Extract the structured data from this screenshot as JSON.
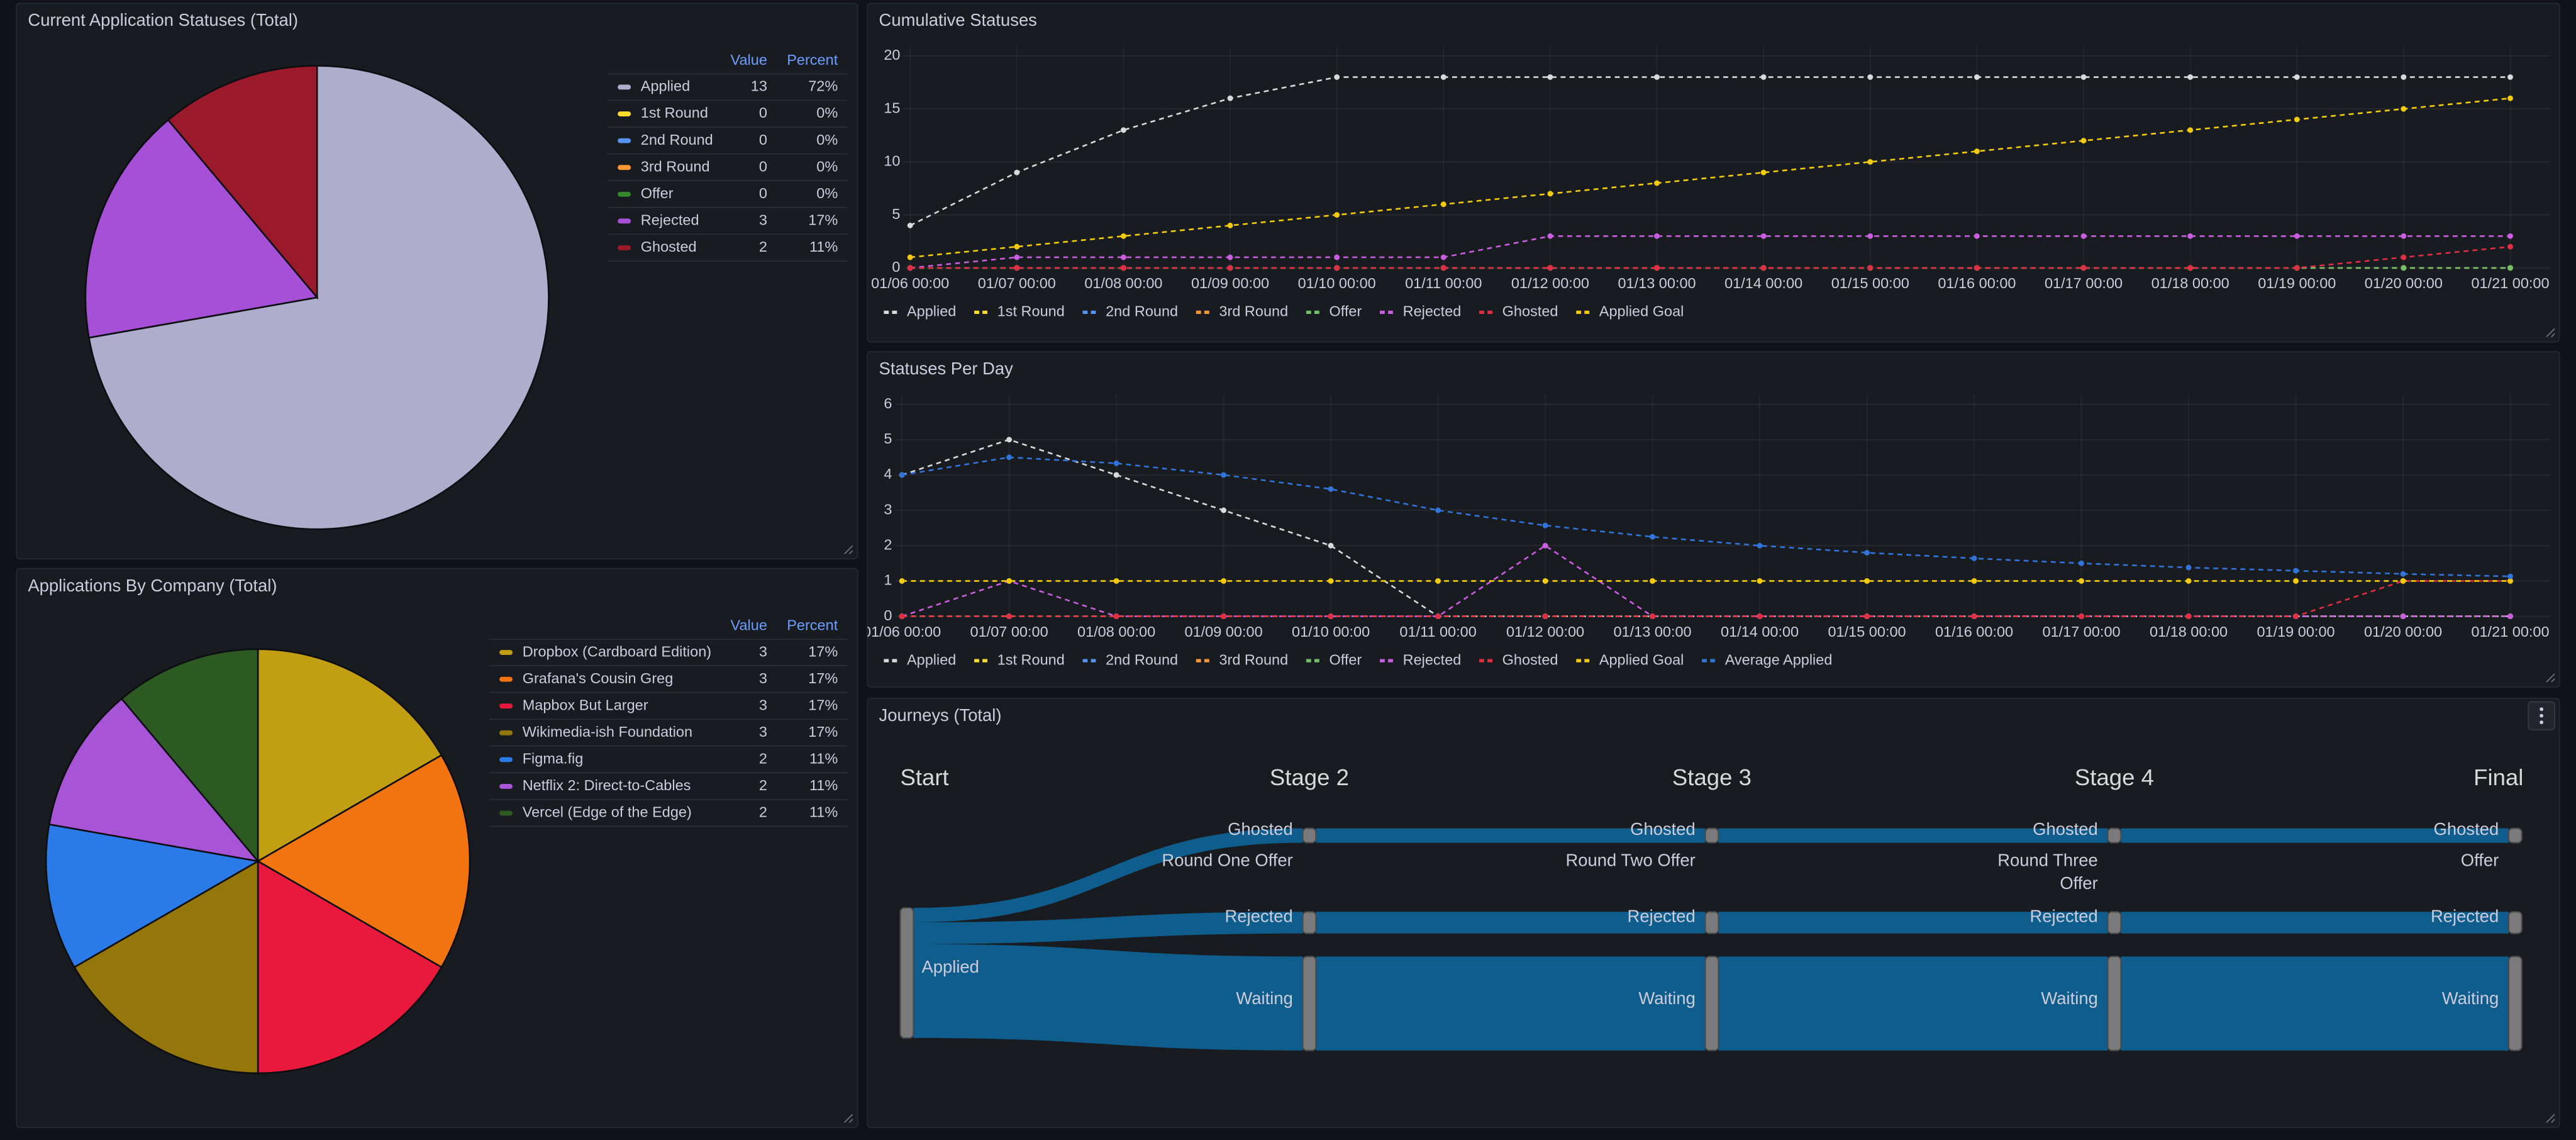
{
  "chart_data": [
    {
      "type": "pie",
      "title": "Current Application Statuses (Total)",
      "columns": [
        "Value",
        "Percent"
      ],
      "categories": [
        "Applied",
        "1st Round",
        "2nd Round",
        "3rd Round",
        "Offer",
        "Rejected",
        "Ghosted"
      ],
      "values": [
        13,
        0,
        0,
        0,
        0,
        3,
        2
      ],
      "percent_labels": [
        "72%",
        "0%",
        "0%",
        "0%",
        "0%",
        "17%",
        "11%"
      ],
      "colors": [
        "#aeadcc",
        "#fade2a",
        "#5794f2",
        "#ff9830",
        "#37872d",
        "#a550d6",
        "#9a1a2c"
      ]
    },
    {
      "type": "pie",
      "title": "Applications By Company (Total)",
      "columns": [
        "Value",
        "Percent"
      ],
      "categories": [
        "Dropbox (Cardboard Edition)",
        "Grafana's Cousin Greg",
        "Mapbox But Larger",
        "Wikimedia-ish Foundation",
        "Figma.fig",
        "Netflix 2: Direct-to-Cables",
        "Vercel (Edge of the Edge)"
      ],
      "values": [
        3,
        3,
        3,
        3,
        2,
        2,
        2
      ],
      "percent_labels": [
        "17%",
        "17%",
        "17%",
        "17%",
        "11%",
        "11%",
        "11%"
      ],
      "colors": [
        "#c29f12",
        "#f27410",
        "#e8193d",
        "#94760a",
        "#2a7ae8",
        "#a854d6",
        "#2c5a22"
      ]
    },
    {
      "type": "line",
      "title": "Cumulative Statuses",
      "categories": [
        "01/06 00:00",
        "01/07 00:00",
        "01/08 00:00",
        "01/09 00:00",
        "01/10 00:00",
        "01/11 00:00",
        "01/12 00:00",
        "01/13 00:00",
        "01/14 00:00",
        "01/15 00:00",
        "01/16 00:00",
        "01/17 00:00",
        "01/18 00:00",
        "01/19 00:00",
        "01/20 00:00",
        "01/21 00:00"
      ],
      "ylim": [
        0,
        20
      ],
      "yticks": [
        0,
        5,
        10,
        15,
        20
      ],
      "grid": true,
      "legend": "bottom",
      "series": [
        {
          "name": "Applied",
          "color": "#d8d9da",
          "values": [
            4,
            9,
            13,
            16,
            18,
            18,
            18,
            18,
            18,
            18,
            18,
            18,
            18,
            18,
            18,
            18
          ]
        },
        {
          "name": "1st Round",
          "color": "#fade2a",
          "values": [
            0,
            0,
            0,
            0,
            0,
            0,
            0,
            0,
            0,
            0,
            0,
            0,
            0,
            0,
            0,
            0
          ]
        },
        {
          "name": "2nd Round",
          "color": "#5794f2",
          "values": [
            0,
            0,
            0,
            0,
            0,
            0,
            0,
            0,
            0,
            0,
            0,
            0,
            0,
            0,
            0,
            0
          ]
        },
        {
          "name": "3rd Round",
          "color": "#ff9830",
          "values": [
            0,
            0,
            0,
            0,
            0,
            0,
            0,
            0,
            0,
            0,
            0,
            0,
            0,
            0,
            0,
            0
          ]
        },
        {
          "name": "Offer",
          "color": "#73bf69",
          "values": [
            0,
            0,
            0,
            0,
            0,
            0,
            0,
            0,
            0,
            0,
            0,
            0,
            0,
            0,
            0,
            0
          ]
        },
        {
          "name": "Rejected",
          "color": "#ca5ee0",
          "values": [
            0,
            1,
            1,
            1,
            1,
            1,
            3,
            3,
            3,
            3,
            3,
            3,
            3,
            3,
            3,
            3
          ]
        },
        {
          "name": "Ghosted",
          "color": "#e02f44",
          "values": [
            0,
            0,
            0,
            0,
            0,
            0,
            0,
            0,
            0,
            0,
            0,
            0,
            0,
            0,
            1,
            2
          ]
        },
        {
          "name": "Applied Goal",
          "color": "#f2cc0c",
          "values": [
            1,
            2,
            3,
            4,
            5,
            6,
            7,
            8,
            9,
            10,
            11,
            12,
            13,
            14,
            15,
            16
          ]
        }
      ]
    },
    {
      "type": "line",
      "title": "Statuses Per Day",
      "categories": [
        "01/06 00:00",
        "01/07 00:00",
        "01/08 00:00",
        "01/09 00:00",
        "01/10 00:00",
        "01/11 00:00",
        "01/12 00:00",
        "01/13 00:00",
        "01/14 00:00",
        "01/15 00:00",
        "01/16 00:00",
        "01/17 00:00",
        "01/18 00:00",
        "01/19 00:00",
        "01/20 00:00",
        "01/21 00:00"
      ],
      "ylim": [
        0,
        6
      ],
      "yticks": [
        0,
        1,
        2,
        3,
        4,
        5,
        6
      ],
      "grid": true,
      "legend": "bottom",
      "series": [
        {
          "name": "Applied",
          "color": "#d8d9da",
          "values": [
            4,
            5,
            4,
            3,
            2,
            0,
            0,
            0,
            0,
            0,
            0,
            0,
            0,
            0,
            0,
            0
          ]
        },
        {
          "name": "1st Round",
          "color": "#fade2a",
          "values": [
            0,
            0,
            0,
            0,
            0,
            0,
            0,
            0,
            0,
            0,
            0,
            0,
            0,
            0,
            0,
            0
          ]
        },
        {
          "name": "2nd Round",
          "color": "#5794f2",
          "values": [
            0,
            0,
            0,
            0,
            0,
            0,
            0,
            0,
            0,
            0,
            0,
            0,
            0,
            0,
            0,
            0
          ]
        },
        {
          "name": "3rd Round",
          "color": "#ff9830",
          "values": [
            0,
            0,
            0,
            0,
            0,
            0,
            0,
            0,
            0,
            0,
            0,
            0,
            0,
            0,
            0,
            0
          ]
        },
        {
          "name": "Offer",
          "color": "#73bf69",
          "values": [
            0,
            0,
            0,
            0,
            0,
            0,
            0,
            0,
            0,
            0,
            0,
            0,
            0,
            0,
            0,
            0
          ]
        },
        {
          "name": "Rejected",
          "color": "#ca5ee0",
          "values": [
            0,
            1,
            0,
            0,
            0,
            0,
            2,
            0,
            0,
            0,
            0,
            0,
            0,
            0,
            0,
            0
          ]
        },
        {
          "name": "Ghosted",
          "color": "#e02f44",
          "values": [
            0,
            0,
            0,
            0,
            0,
            0,
            0,
            0,
            0,
            0,
            0,
            0,
            0,
            0,
            1,
            1
          ]
        },
        {
          "name": "Applied Goal",
          "color": "#f2cc0c",
          "values": [
            1,
            1,
            1,
            1,
            1,
            1,
            1,
            1,
            1,
            1,
            1,
            1,
            1,
            1,
            1,
            1
          ]
        },
        {
          "name": "Average Applied",
          "color": "#3274d9",
          "values": [
            4,
            4.5,
            4.33,
            4,
            3.6,
            3,
            2.57,
            2.25,
            2,
            1.8,
            1.64,
            1.5,
            1.38,
            1.29,
            1.2,
            1.13
          ]
        }
      ]
    },
    {
      "type": "sankey",
      "title": "Journeys (Total)",
      "columns": [
        "Start",
        "Stage 2",
        "Stage 3",
        "Stage 4",
        "Final"
      ],
      "nodes": [
        {
          "label": "Applied",
          "column": 0
        },
        {
          "label": "Ghosted",
          "column": 1
        },
        {
          "label": "Round One Offer",
          "column": 1
        },
        {
          "label": "Rejected",
          "column": 1
        },
        {
          "label": "Waiting",
          "column": 1
        },
        {
          "label": "Ghosted",
          "column": 2
        },
        {
          "label": "Round Two Offer",
          "column": 2
        },
        {
          "label": "Rejected",
          "column": 2
        },
        {
          "label": "Waiting",
          "column": 2
        },
        {
          "label": "Ghosted",
          "column": 3
        },
        {
          "label": "Round Three Offer",
          "column": 3
        },
        {
          "label": "Rejected",
          "column": 3
        },
        {
          "label": "Waiting",
          "column": 3
        },
        {
          "label": "Ghosted",
          "column": 4
        },
        {
          "label": "Offer",
          "column": 4
        },
        {
          "label": "Rejected",
          "column": 4
        },
        {
          "label": "Waiting",
          "column": 4
        }
      ],
      "links": [
        {
          "source": 0,
          "target": 1,
          "value": 2
        },
        {
          "source": 0,
          "target": 3,
          "value": 3
        },
        {
          "source": 0,
          "target": 4,
          "value": 13
        },
        {
          "source": 1,
          "target": 5,
          "value": 2
        },
        {
          "source": 3,
          "target": 7,
          "value": 3
        },
        {
          "source": 4,
          "target": 8,
          "value": 13
        },
        {
          "source": 5,
          "target": 9,
          "value": 2
        },
        {
          "source": 7,
          "target": 11,
          "value": 3
        },
        {
          "source": 8,
          "target": 12,
          "value": 13
        },
        {
          "source": 9,
          "target": 13,
          "value": 2
        },
        {
          "source": 11,
          "target": 15,
          "value": 3
        },
        {
          "source": 12,
          "target": 16,
          "value": 13
        }
      ],
      "color": "#0f6396"
    }
  ]
}
